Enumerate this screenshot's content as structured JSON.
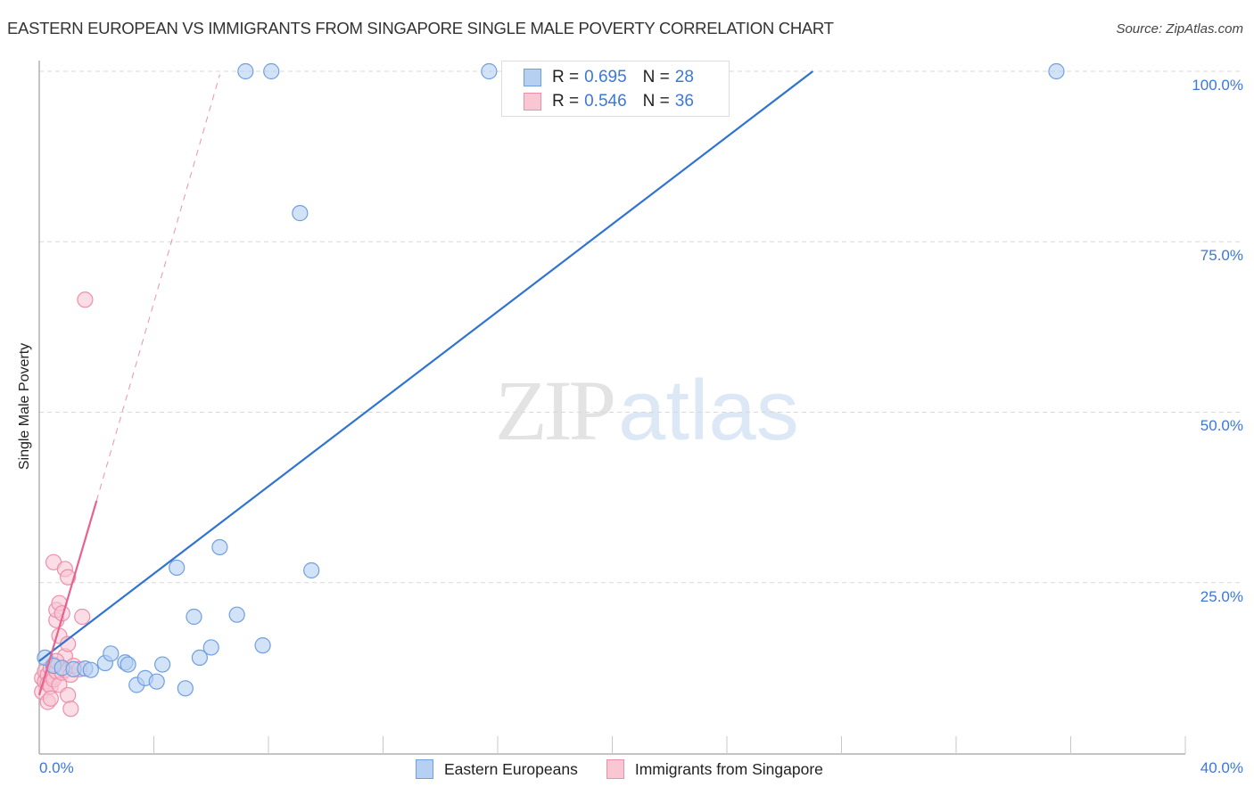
{
  "header": {
    "title": "EASTERN EUROPEAN VS IMMIGRANTS FROM SINGAPORE SINGLE MALE POVERTY CORRELATION CHART",
    "source": "Source: ZipAtlas.com"
  },
  "axes": {
    "y_label": "Single Male Poverty",
    "y_ticks": [
      "100.0%",
      "75.0%",
      "50.0%",
      "25.0%"
    ],
    "x_tick_min": "0.0%",
    "x_tick_max": "40.0%"
  },
  "legend_stats": {
    "series1": {
      "r_label": "R =",
      "r_value": "0.695",
      "n_label": "N =",
      "n_value": "28"
    },
    "series2": {
      "r_label": "R =",
      "r_value": "0.546",
      "n_label": "N =",
      "n_value": "36"
    }
  },
  "legend": {
    "series1_label": "Eastern Europeans",
    "series2_label": "Immigrants from Singapore"
  },
  "watermark": {
    "zip": "ZIP",
    "atlas": "atlas"
  },
  "colors": {
    "blue_fill": "#b6d0f2",
    "blue_stroke": "#6f9fe0",
    "blue_line": "#2f74d0",
    "pink_fill": "#f9c6d4",
    "pink_stroke": "#ee8fac",
    "pink_line": "#e8628f",
    "tick_text": "#3b78d8"
  },
  "chart_data": {
    "type": "scatter",
    "title": "EASTERN EUROPEAN VS IMMIGRANTS FROM SINGAPORE SINGLE MALE POVERTY CORRELATION CHART",
    "xlabel": "",
    "ylabel": "Single Male Poverty",
    "xlim": [
      0,
      40
    ],
    "ylim": [
      0,
      100
    ],
    "x_ticks": [
      "0.0%",
      "40.0%"
    ],
    "y_ticks": [
      "25.0%",
      "50.0%",
      "75.0%",
      "100.0%"
    ],
    "grid": "horizontal dashed",
    "legend_position": "bottom",
    "series": [
      {
        "name": "Eastern Europeans",
        "r": 0.695,
        "n": 28,
        "points": [
          [
            0.2,
            14.0
          ],
          [
            0.5,
            12.8
          ],
          [
            0.8,
            12.5
          ],
          [
            1.2,
            12.3
          ],
          [
            1.6,
            12.4
          ],
          [
            1.8,
            12.2
          ],
          [
            2.3,
            13.2
          ],
          [
            2.5,
            14.6
          ],
          [
            3.0,
            13.3
          ],
          [
            3.1,
            13.0
          ],
          [
            3.4,
            10.0
          ],
          [
            3.7,
            11.0
          ],
          [
            4.1,
            10.5
          ],
          [
            4.3,
            13.0
          ],
          [
            4.8,
            27.2
          ],
          [
            5.1,
            9.5
          ],
          [
            5.4,
            20.0
          ],
          [
            5.6,
            14.0
          ],
          [
            6.0,
            15.5
          ],
          [
            6.3,
            30.2
          ],
          [
            6.9,
            20.3
          ],
          [
            7.2,
            100
          ],
          [
            8.1,
            100
          ],
          [
            7.8,
            15.8
          ],
          [
            9.1,
            79.2
          ],
          [
            9.5,
            26.8
          ],
          [
            15.7,
            100
          ],
          [
            35.5,
            100
          ]
        ],
        "trendline": {
          "x": [
            0,
            27
          ],
          "y": [
            13.5,
            100
          ],
          "style": "solid"
        }
      },
      {
        "name": "Immigrants from Singapore",
        "r": 0.546,
        "n": 36,
        "points": [
          [
            0.1,
            11.0
          ],
          [
            0.1,
            9.0
          ],
          [
            0.2,
            10.5
          ],
          [
            0.2,
            12.0
          ],
          [
            0.3,
            11.5
          ],
          [
            0.3,
            10.2
          ],
          [
            0.3,
            7.5
          ],
          [
            0.4,
            9.8
          ],
          [
            0.4,
            12.5
          ],
          [
            0.5,
            11.2
          ],
          [
            0.5,
            10.8
          ],
          [
            0.5,
            28.0
          ],
          [
            0.5,
            13.0
          ],
          [
            0.6,
            19.5
          ],
          [
            0.6,
            21.0
          ],
          [
            0.6,
            12.0
          ],
          [
            0.7,
            10.0
          ],
          [
            0.7,
            22.0
          ],
          [
            0.7,
            17.2
          ],
          [
            0.8,
            20.5
          ],
          [
            0.8,
            12.5
          ],
          [
            0.8,
            11.8
          ],
          [
            0.9,
            27.0
          ],
          [
            0.9,
            14.2
          ],
          [
            0.9,
            12.2
          ],
          [
            1.0,
            16.0
          ],
          [
            1.0,
            25.8
          ],
          [
            1.0,
            8.5
          ],
          [
            1.1,
            6.5
          ],
          [
            1.1,
            11.5
          ],
          [
            1.2,
            12.8
          ],
          [
            1.4,
            12.3
          ],
          [
            1.5,
            20.0
          ],
          [
            1.6,
            66.5
          ],
          [
            0.4,
            8.0
          ],
          [
            0.6,
            13.5
          ]
        ],
        "trendline": {
          "x": [
            0,
            2.0
          ],
          "y": [
            8.5,
            37.0
          ],
          "style": "solid",
          "extension": {
            "x": [
              2.0,
              6.3
            ],
            "y": [
              37.0,
              99.5
            ],
            "style": "dashed"
          }
        }
      }
    ]
  }
}
